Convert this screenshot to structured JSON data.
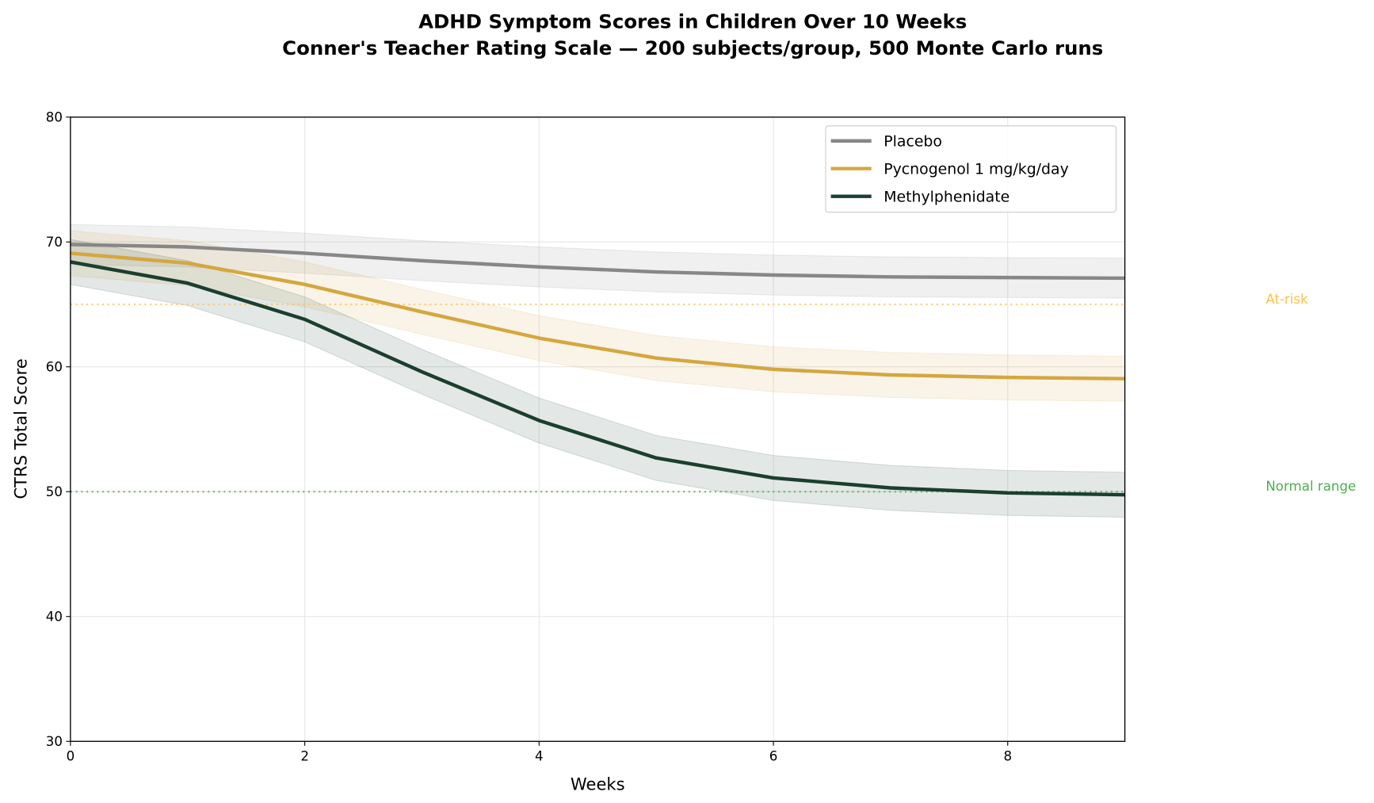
{
  "chart_data": {
    "type": "line",
    "title": "ADHD Symptom Scores in Children Over 10 Weeks",
    "subtitle": "Conner's Teacher Rating Scale — 200 subjects/group, 500 Monte Carlo runs",
    "xlabel": "Weeks",
    "ylabel": "CTRS Total Score",
    "xlim": [
      0,
      9
    ],
    "ylim": [
      30,
      80
    ],
    "xticks": [
      "0",
      "2",
      "4",
      "6",
      "8"
    ],
    "yticks": [
      "30",
      "40",
      "50",
      "60",
      "70",
      "80"
    ],
    "grid": true,
    "legend_position": "top-right",
    "x": [
      0,
      1,
      2,
      3,
      4,
      5,
      6,
      7,
      8,
      9
    ],
    "series": [
      {
        "name": "Placebo",
        "color": "#878787",
        "values": [
          69.8,
          69.6,
          69.1,
          68.5,
          68.0,
          67.6,
          67.35,
          67.2,
          67.15,
          67.1
        ],
        "ci_half_width": 1.6
      },
      {
        "name": "Pycnogenol 1 mg/kg/day",
        "color": "#d4a73f",
        "values": [
          69.1,
          68.3,
          66.6,
          64.4,
          62.3,
          60.7,
          59.8,
          59.35,
          59.15,
          59.05
        ],
        "ci_half_width": 1.8
      },
      {
        "name": "Methylphenidate",
        "color": "#1b3f2e",
        "values": [
          68.4,
          66.7,
          63.8,
          59.6,
          55.7,
          52.7,
          51.1,
          50.3,
          49.9,
          49.75
        ],
        "ci_half_width": 1.8
      }
    ],
    "reference_lines": [
      {
        "label": "At-risk",
        "y": 65,
        "color": "#ffc04d"
      },
      {
        "label": "Normal range",
        "y": 50,
        "color": "#4caf50"
      }
    ]
  }
}
